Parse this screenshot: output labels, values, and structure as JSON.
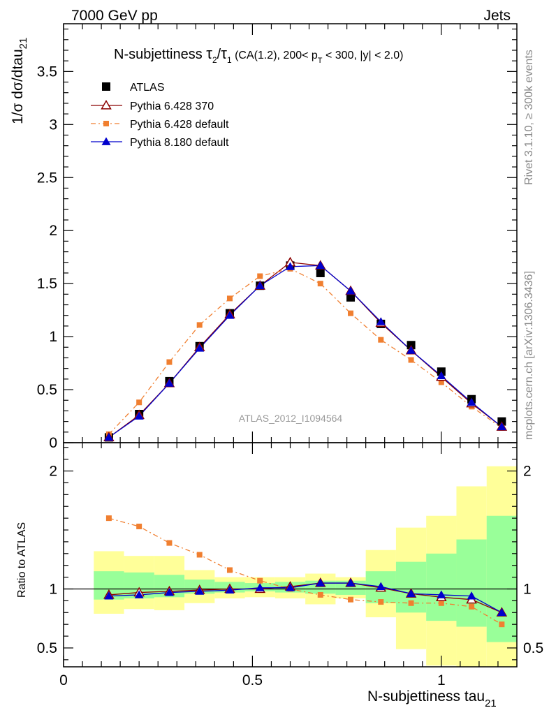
{
  "header": {
    "left": "7000 GeV pp",
    "right": "Jets"
  },
  "side_labels": {
    "rivet": "Rivet 3.1.10, ≥ 300k events",
    "mcplots": "mcplots.cern.ch [arXiv:1306.3436]"
  },
  "watermark": "ATLAS_2012_I1094564",
  "title": {
    "prefix": "N-subjettiness ",
    "tau2": "τ",
    "tau2_sub": "2",
    "slash": "/",
    "tau1": "τ",
    "tau1_sub": "1",
    "rest1": " (CA(1.2), 200< p",
    "pt_sub": "T",
    "rest2": " < 300, |y| < 2.0)"
  },
  "ylabel_main": {
    "text": "1/σ dσ/dtau",
    "sub": "21"
  },
  "ylabel_ratio": "Ratio to ATLAS",
  "xlabel": {
    "text": "N-subjettiness tau",
    "sub": "21"
  },
  "colors": {
    "atlas": "#000000",
    "py6_370": "#8b0000",
    "py6_default": "#f07f30",
    "py8_default": "#0000cc",
    "band_inner": "#99ff99",
    "band_outer": "#ffff99"
  },
  "chart_data": {
    "type": "scatter",
    "x_ticks": [
      "0",
      "0.5",
      "1"
    ],
    "x_range": [
      0,
      1.2
    ],
    "main": {
      "y_range": [
        0,
        3.95
      ],
      "y_ticks": [
        "0",
        "0.5",
        "1",
        "1.5",
        "2",
        "2.5",
        "3",
        "3.5"
      ]
    },
    "ratio": {
      "y_range": [
        0.34,
        2.24
      ],
      "y_ticks": [
        "0.5",
        "1",
        "2"
      ],
      "y_ticks_right": [
        "0.5",
        "1",
        "2"
      ]
    },
    "bins": [
      [
        0.08,
        0.16
      ],
      [
        0.16,
        0.24
      ],
      [
        0.24,
        0.32
      ],
      [
        0.32,
        0.4
      ],
      [
        0.4,
        0.48
      ],
      [
        0.48,
        0.56
      ],
      [
        0.56,
        0.64
      ],
      [
        0.64,
        0.72
      ],
      [
        0.72,
        0.8
      ],
      [
        0.8,
        0.88
      ],
      [
        0.88,
        0.96
      ],
      [
        0.96,
        1.04
      ],
      [
        1.04,
        1.12
      ],
      [
        1.12,
        1.2
      ]
    ],
    "x": [
      0.12,
      0.2,
      0.28,
      0.36,
      0.44,
      0.52,
      0.6,
      0.68,
      0.76,
      0.84,
      0.92,
      1.0,
      1.08,
      1.16
    ],
    "series": [
      {
        "name": "ATLAS",
        "marker": "square",
        "values": [
          0.05,
          0.27,
          0.58,
          0.91,
          1.22,
          1.48,
          1.67,
          1.6,
          1.37,
          1.12,
          0.92,
          0.67,
          0.41,
          0.2
        ]
      },
      {
        "name": "Pythia 6.428 370",
        "marker": "open-triangle",
        "values": [
          0.05,
          0.26,
          0.56,
          0.9,
          1.21,
          1.48,
          1.7,
          1.67,
          1.43,
          1.13,
          0.87,
          0.62,
          0.37,
          0.15
        ],
        "ratio": [
          0.95,
          0.97,
          0.98,
          0.99,
          1.0,
          1.0,
          1.02,
          1.05,
          1.05,
          1.01,
          0.96,
          0.93,
          0.91,
          0.8
        ]
      },
      {
        "name": "Pythia 6.428 default",
        "marker": "square-small",
        "values": [
          0.08,
          0.38,
          0.76,
          1.11,
          1.36,
          1.57,
          1.64,
          1.5,
          1.22,
          0.97,
          0.78,
          0.57,
          0.34,
          0.14
        ],
        "ratio": [
          1.6,
          1.53,
          1.39,
          1.29,
          1.16,
          1.07,
          1.0,
          0.95,
          0.91,
          0.89,
          0.88,
          0.88,
          0.85,
          0.7
        ]
      },
      {
        "name": "Pythia 8.180 default",
        "marker": "filled-triangle",
        "values": [
          0.05,
          0.25,
          0.56,
          0.89,
          1.2,
          1.48,
          1.66,
          1.67,
          1.43,
          1.14,
          0.87,
          0.63,
          0.38,
          0.15
        ],
        "ratio": [
          0.94,
          0.95,
          0.97,
          0.98,
          0.99,
          1.01,
          1.01,
          1.05,
          1.05,
          1.02,
          0.96,
          0.95,
          0.94,
          0.8
        ]
      }
    ],
    "band_inner": [
      [
        0.91,
        1.15
      ],
      [
        0.92,
        1.14
      ],
      [
        0.93,
        1.12
      ],
      [
        0.96,
        1.08
      ],
      [
        0.97,
        1.06
      ],
      [
        0.98,
        1.05
      ],
      [
        0.97,
        1.06
      ],
      [
        0.96,
        1.07
      ],
      [
        0.95,
        1.07
      ],
      [
        0.88,
        1.15
      ],
      [
        0.8,
        1.23
      ],
      [
        0.73,
        1.3
      ],
      [
        0.68,
        1.42
      ],
      [
        0.55,
        1.62
      ]
    ],
    "band_outer": [
      [
        0.79,
        1.32
      ],
      [
        0.83,
        1.28
      ],
      [
        0.82,
        1.28
      ],
      [
        0.88,
        1.16
      ],
      [
        0.92,
        1.1
      ],
      [
        0.93,
        1.1
      ],
      [
        0.92,
        1.1
      ],
      [
        0.87,
        1.13
      ],
      [
        0.92,
        1.1
      ],
      [
        0.76,
        1.33
      ],
      [
        0.49,
        1.52
      ],
      [
        0.35,
        1.62
      ],
      [
        0.33,
        1.87
      ],
      [
        0.33,
        2.04
      ]
    ],
    "legend_position": "top-left"
  }
}
